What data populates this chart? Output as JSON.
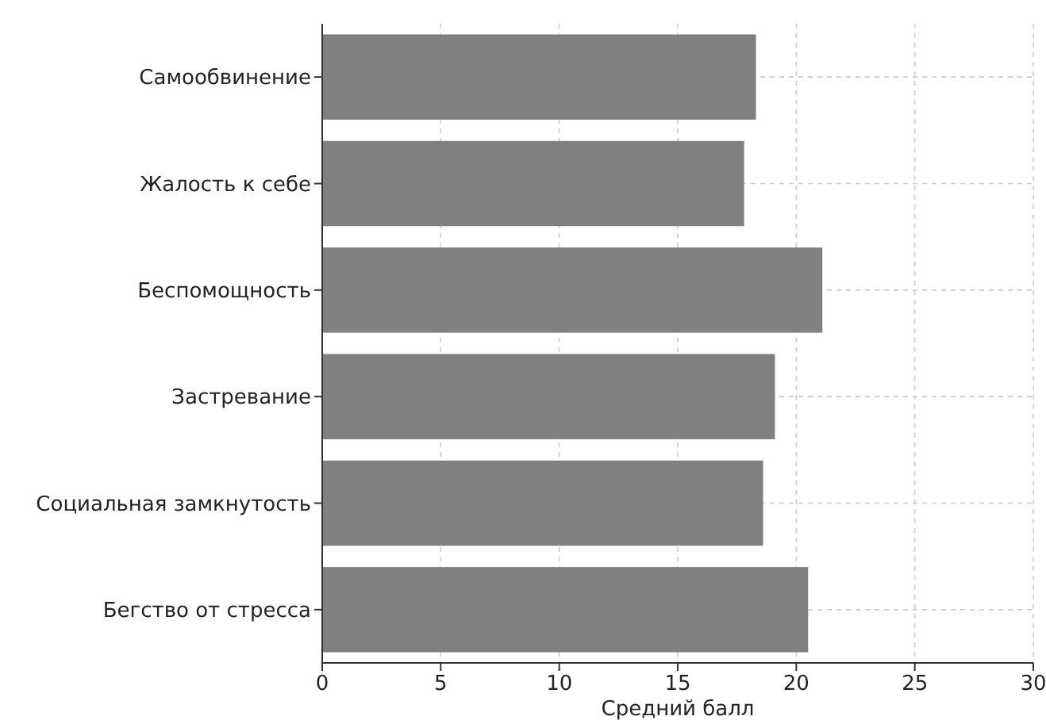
{
  "chart_data": {
    "type": "bar",
    "orientation": "horizontal",
    "categories": [
      "Самообвинение",
      "Жалость к себе",
      "Беспомощность",
      "Застревание",
      "Социальная замкнутость",
      "Бегство от стресса"
    ],
    "values": [
      18.3,
      17.8,
      21.1,
      19.1,
      18.6,
      20.5
    ],
    "color": "#808080",
    "xlabel": "Средний балл",
    "xlim": [
      0,
      30
    ],
    "xticks": [
      0,
      5,
      10,
      15,
      20,
      25,
      30
    ],
    "grid": true
  }
}
